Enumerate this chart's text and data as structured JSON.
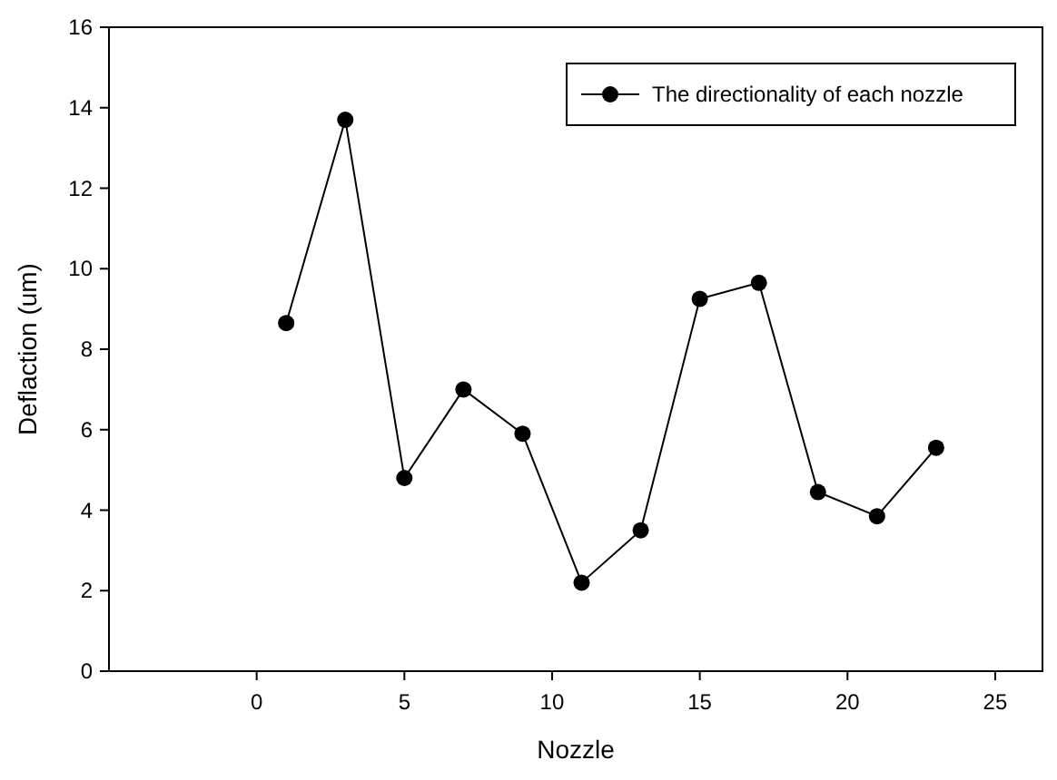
{
  "chart_data": {
    "type": "line",
    "xlabel": "Nozzle",
    "ylabel": "Deflaction (um)",
    "x": [
      1,
      3,
      5,
      7,
      9,
      11,
      13,
      15,
      17,
      19,
      21,
      23
    ],
    "series": [
      {
        "name": "The directionality of each nozzle",
        "color": "#000000",
        "values": [
          8.65,
          13.7,
          4.8,
          7.0,
          5.9,
          2.2,
          3.5,
          9.25,
          9.65,
          4.45,
          3.85,
          5.55
        ]
      }
    ],
    "xlim": [
      -5,
      26.6
    ],
    "xticks": [
      0,
      5,
      10,
      15,
      20,
      25
    ],
    "ylim": [
      0,
      16
    ],
    "yticks": [
      0,
      2,
      4,
      6,
      8,
      10,
      12,
      14,
      16
    ],
    "marker": "circle",
    "line_style": "solid",
    "legend": "top right",
    "grid": false
  }
}
